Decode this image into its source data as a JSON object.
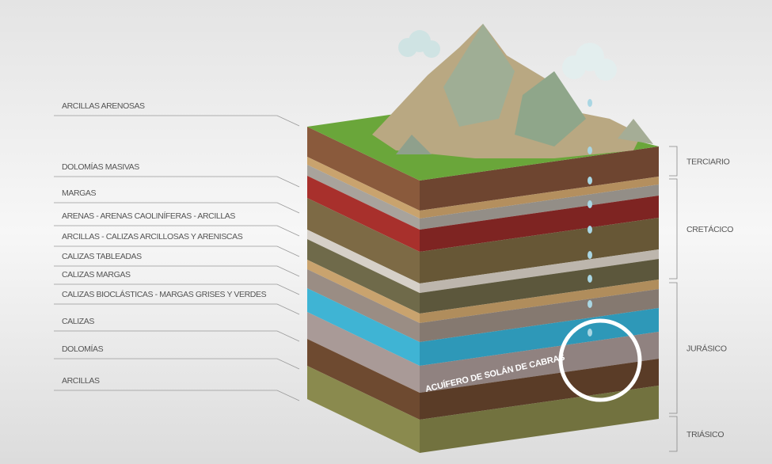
{
  "layers": [
    "ARCILLAS ARENOSAS",
    "DOLOMÍAS MASIVAS",
    "MARGAS",
    "ARENAS - ARENAS CAOLINÍFERAS - ARCILLAS",
    "ARCILLAS - CALIZAS ARCILLOSAS Y ARENISCAS",
    "CALIZAS TABLEADAS",
    "CALIZAS MARGAS",
    "CALIZAS BIOCLÁSTICAS - MARGAS GRISES Y VERDES",
    "CALIZAS",
    "DOLOMÍAS",
    "ARCILLAS"
  ],
  "eras": [
    "TERCIARIO",
    "CRETÁCICO",
    "JURÁSICO",
    "TRIÁSICO"
  ],
  "aquifer": "ACUÍFERO DE SOLÁN DE CABRAS"
}
